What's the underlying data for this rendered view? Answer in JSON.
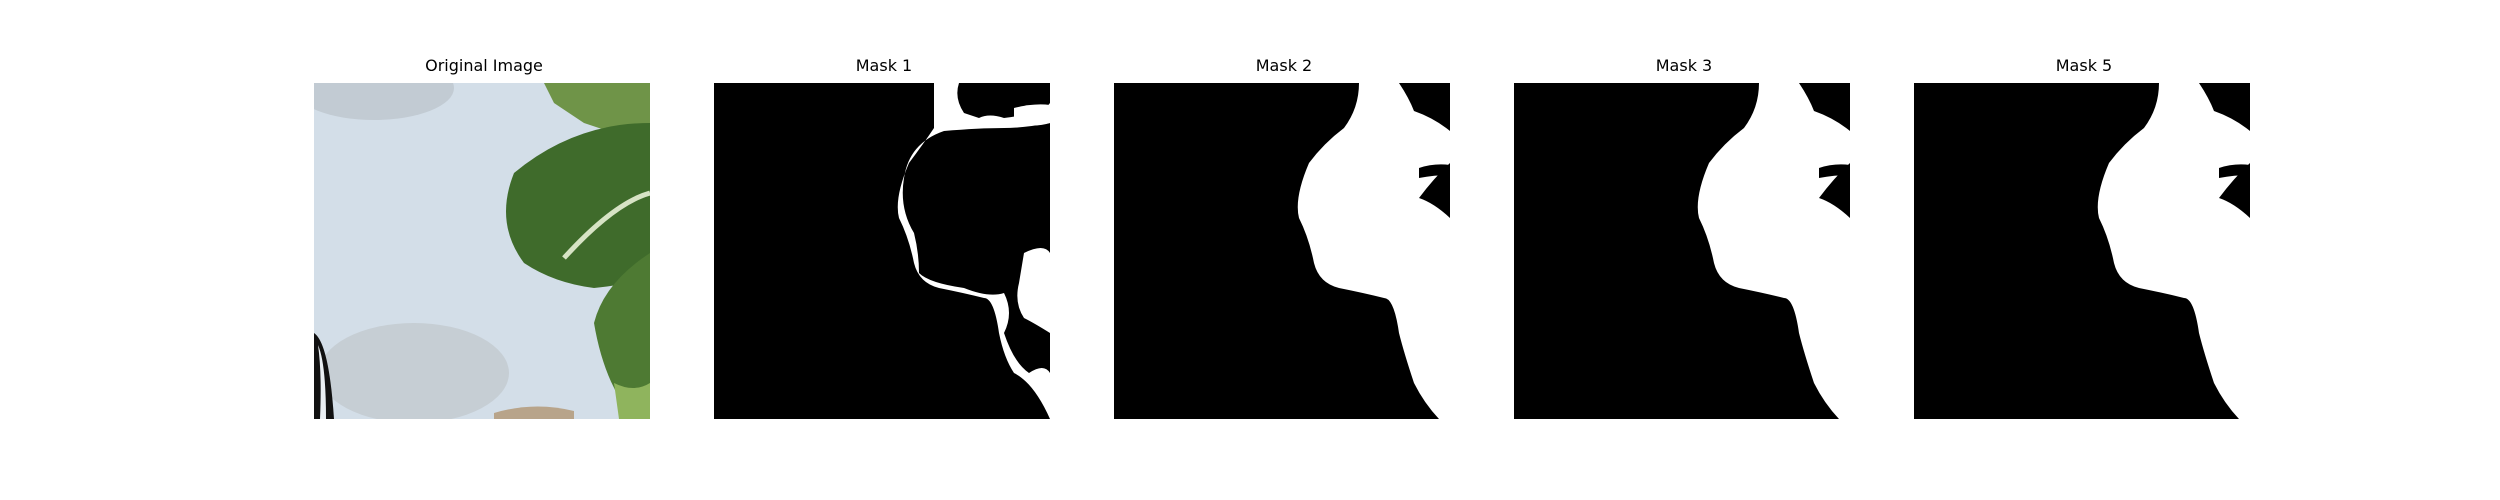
{
  "panels": [
    {
      "title": "Original Image",
      "kind": "photo"
    },
    {
      "title": "Mask 1",
      "kind": "mask"
    },
    {
      "title": "Mask 2",
      "kind": "mask"
    },
    {
      "title": "Mask 3",
      "kind": "mask"
    },
    {
      "title": "Mask 5",
      "kind": "mask"
    }
  ],
  "colors": {
    "background": "#ffffff",
    "mask_bg": "#000000",
    "mask_fg": "#ffffff",
    "photo_bg": "#cfdbe6",
    "leaf_dark": "#3f6b2b",
    "leaf_light": "#7fa35a"
  }
}
